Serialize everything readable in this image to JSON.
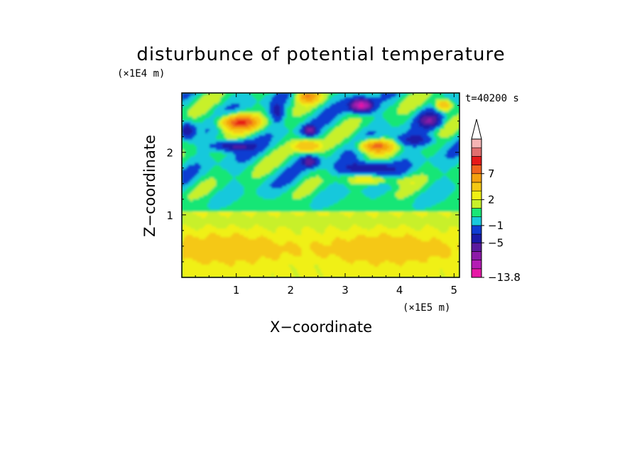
{
  "chart_data": {
    "type": "heatmap",
    "title": "disturbunce of potential temperature",
    "time_label": "t=40200 s",
    "xlabel": "X−coordinate",
    "ylabel": "Z−coordinate",
    "x_unit_label": "(×1E5 m)",
    "y_unit_label": "(×1E4 m)",
    "x_ticks": [
      "1",
      "2",
      "3",
      "4",
      "5"
    ],
    "y_ticks": [
      "1",
      "2"
    ],
    "xlim": [
      0,
      5.1
    ],
    "ylim": [
      0,
      2.95
    ],
    "colorbar": {
      "levels": [
        -13.8,
        -11,
        -9,
        -7,
        -5,
        -3,
        -1,
        0,
        1,
        2,
        3,
        5,
        7,
        9,
        11
      ],
      "colors": [
        "#e619a6",
        "#b41cb4",
        "#8c1aa8",
        "#5a1a9e",
        "#1a1aa8",
        "#0f3cd2",
        "#18c8dc",
        "#19e676",
        "#c8f02a",
        "#f0f014",
        "#f5c814",
        "#f5a00f",
        "#f0641e",
        "#e61919",
        "#e06e6e",
        "#f5b4b4"
      ],
      "labels": [
        "7",
        "2",
        "−1",
        "−5",
        "−13.8"
      ],
      "label_values": [
        7,
        2,
        -1,
        -5,
        -13.8
      ]
    },
    "field_description": "Near-surface layer (z < 1.0) mostly yellow/orange; upper region shows wave-like alternating positive/negative bands reaching extremes near (3.3, 2.75) negative and (1.0, 2.5) positive."
  }
}
